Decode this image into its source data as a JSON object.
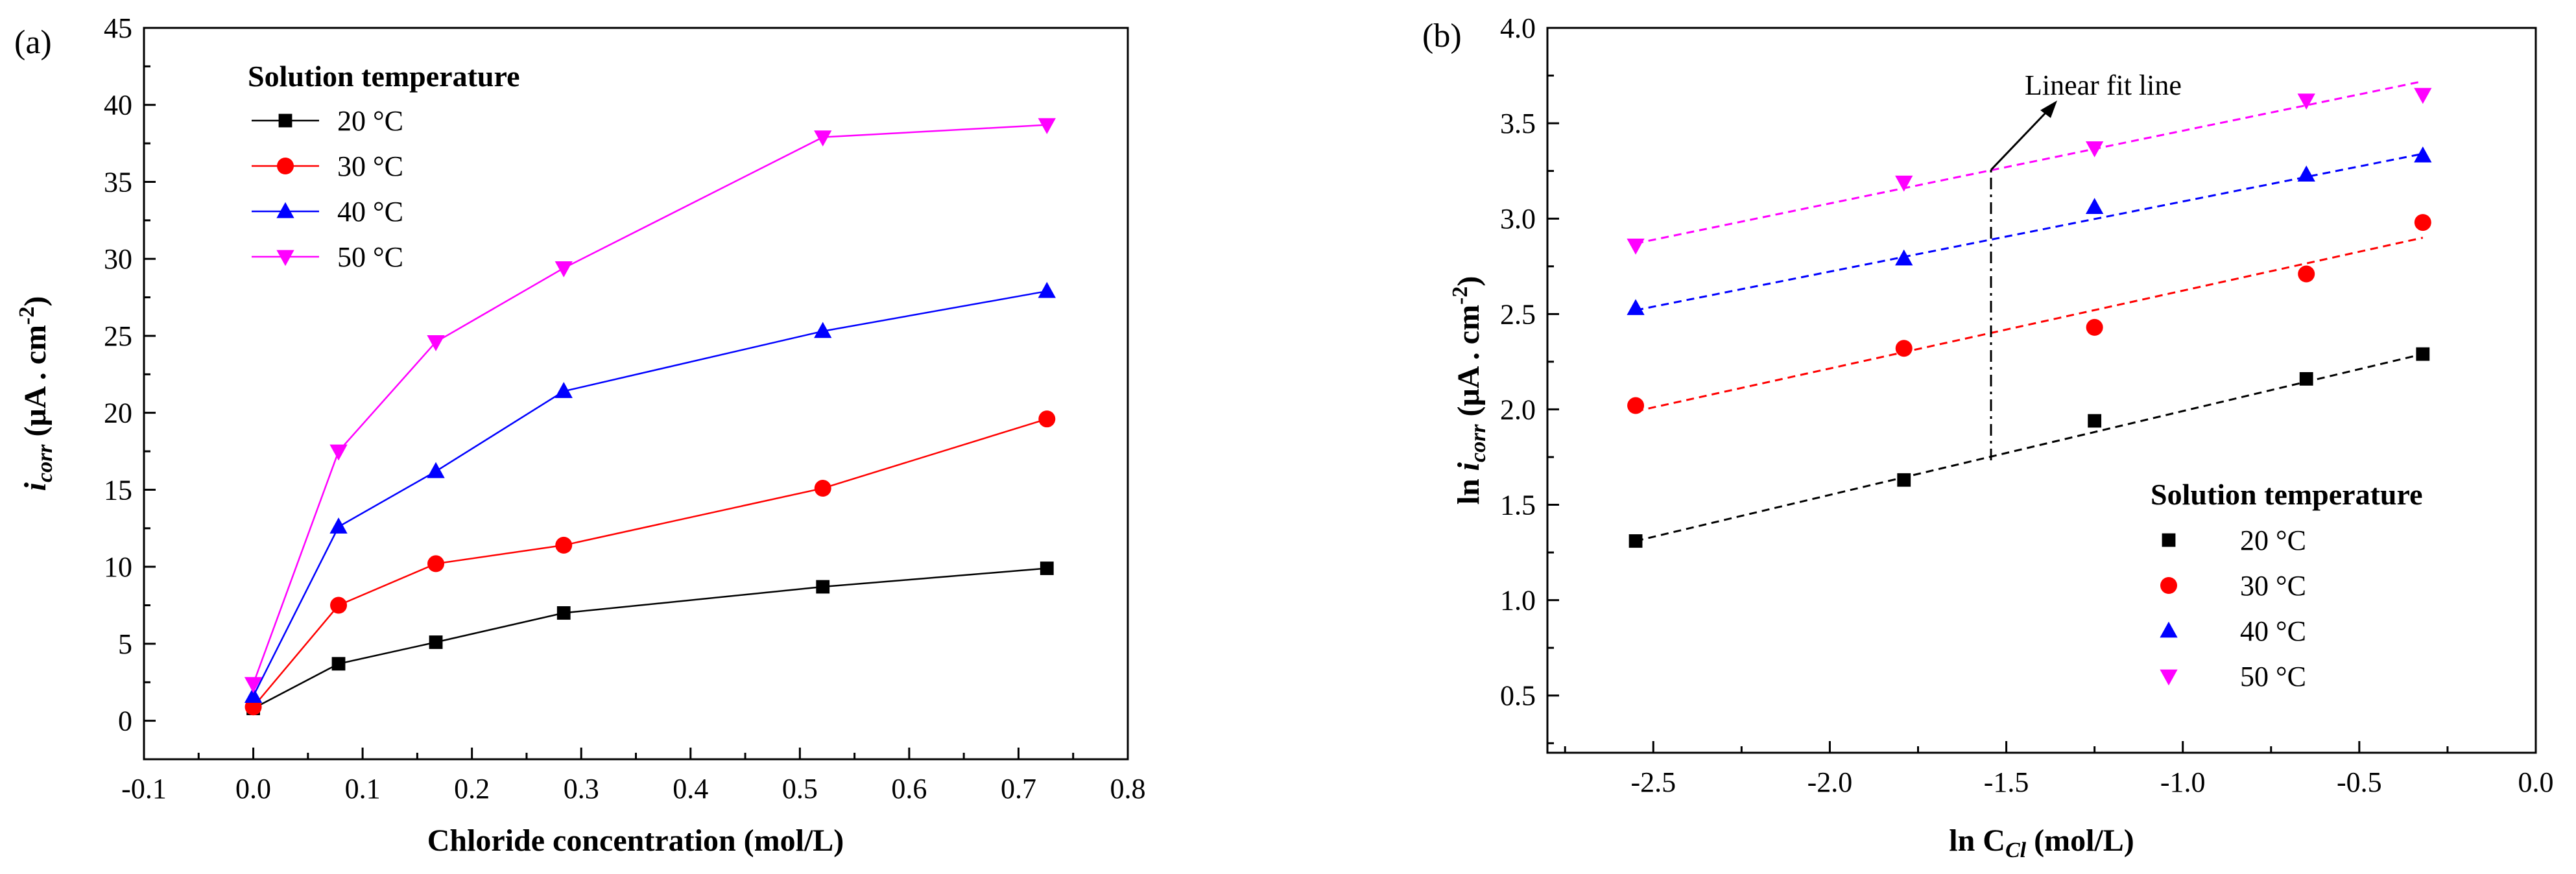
{
  "chart_data": [
    {
      "type": "line",
      "panel_label": "(a)",
      "title": "",
      "xlabel": "Chloride concentration (mol/L)",
      "ylabel": {
        "main": "i",
        "sub": "corr",
        "unit": " (μA . cm",
        "sup": "-2",
        "close": ")"
      },
      "xlim": [
        -0.1,
        0.8
      ],
      "ylim": [
        -2.5,
        45
      ],
      "xticks": [
        "-0.1",
        "0.0",
        "0.1",
        "0.2",
        "0.3",
        "0.4",
        "0.5",
        "0.6",
        "0.7",
        "0.8"
      ],
      "yticks": [
        "0",
        "5",
        "10",
        "15",
        "20",
        "25",
        "30",
        "35",
        "40",
        "45"
      ],
      "legend_title": "Solution temperature",
      "legend_position": "top-left",
      "x": [
        0.0,
        0.078,
        0.167,
        0.284,
        0.521,
        0.726
      ],
      "series": [
        {
          "name": "20 °C",
          "color": "#000000",
          "marker": "square",
          "values": [
            0.8,
            3.7,
            5.1,
            7.0,
            8.7,
            9.9
          ]
        },
        {
          "name": "30 °C",
          "color": "#ff0000",
          "marker": "circle",
          "values": [
            0.9,
            7.5,
            10.2,
            11.4,
            15.1,
            19.6
          ]
        },
        {
          "name": "40 °C",
          "color": "#0000ff",
          "marker": "triangle",
          "values": [
            1.6,
            12.6,
            16.2,
            21.4,
            25.3,
            27.9
          ]
        },
        {
          "name": "50 °C",
          "color": "#ff00ff",
          "marker": "tri-down",
          "values": [
            2.4,
            17.5,
            24.6,
            29.4,
            37.9,
            38.7
          ]
        }
      ]
    },
    {
      "type": "scatter",
      "panel_label": "(b)",
      "title": "",
      "xlabel": {
        "main": "ln C",
        "sub": "Cl",
        "unit": " (mol/L)"
      },
      "ylabel": {
        "main": "ln i",
        "sub": "corr",
        "unit": " (μA . cm",
        "sup": "-2",
        "close": ")"
      },
      "xlim": [
        -2.8,
        0.0
      ],
      "ylim": [
        0.2,
        4.0
      ],
      "xticks": [
        "-2.5",
        "-2.0",
        "-1.5",
        "-1.0",
        "-0.5",
        "0.0"
      ],
      "yticks": [
        "0.5",
        "1.0",
        "1.5",
        "2.0",
        "2.5",
        "3.0",
        "3.5",
        "4.0"
      ],
      "legend_title": "Solution temperature",
      "legend_position": "bottom-right",
      "annotation": "Linear fit line",
      "x": [
        -2.55,
        -1.79,
        -1.25,
        -0.65,
        -0.32
      ],
      "series": [
        {
          "name": "20 °C",
          "color": "#000000",
          "marker": "square",
          "values": [
            1.31,
            1.63,
            1.94,
            2.16,
            2.29
          ],
          "fit": [
            1.31,
            2.29
          ]
        },
        {
          "name": "30 °C",
          "color": "#ff0000",
          "marker": "circle",
          "values": [
            2.02,
            2.32,
            2.43,
            2.71,
            2.98
          ],
          "fit": [
            1.99,
            2.9
          ]
        },
        {
          "name": "40 °C",
          "color": "#0000ff",
          "marker": "triangle",
          "values": [
            2.53,
            2.79,
            3.06,
            3.23,
            3.33
          ],
          "fit": [
            2.52,
            3.34
          ]
        },
        {
          "name": "50 °C",
          "color": "#ff00ff",
          "marker": "tri-down",
          "values": [
            2.86,
            3.19,
            3.37,
            3.62,
            3.65
          ],
          "fit": [
            2.87,
            3.72
          ]
        }
      ]
    }
  ]
}
